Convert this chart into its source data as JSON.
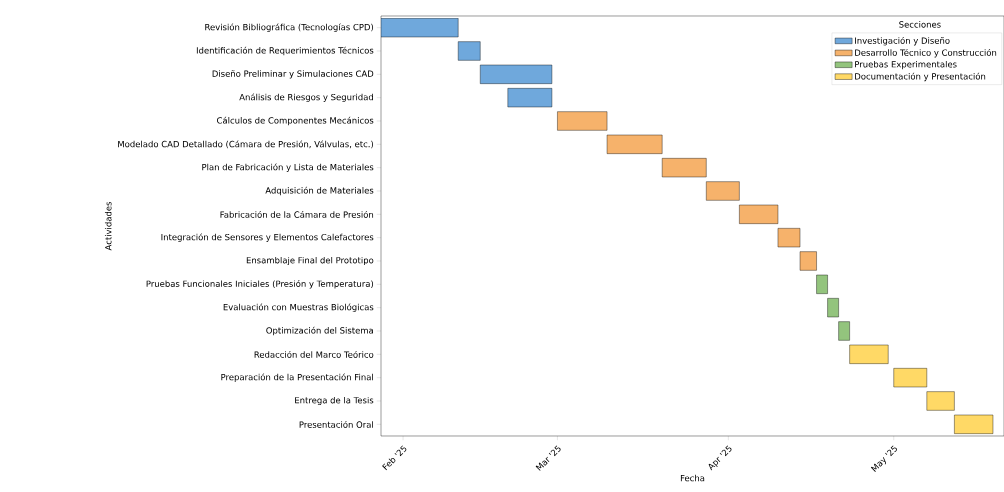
{
  "chart_data": {
    "type": "bar",
    "orientation": "horizontal",
    "xlabel": "Fecha",
    "ylabel": "Actividades",
    "legend_title": "Secciones",
    "legend": "top right",
    "grid": false,
    "categories": [
      "Revisión Bibliográfica (Tecnologías CPD)",
      "Identificación de Requerimientos Técnicos",
      "Diseño Preliminar y Simulaciones CAD",
      "Análisis de Riesgos y Seguridad",
      "Cálculos de Componentes Mecánicos",
      "Modelado CAD Detallado (Cámara de Presión, Válvulas, etc.)",
      "Plan de Fabricación y Lista de Materiales",
      "Adquisición de Materiales",
      "Fabricación de la Cámara de Presión",
      "Integración de Sensores y Elementos Calefactores",
      "Ensamblaje Final del Prototipo",
      "Pruebas Funcionales Iniciales (Presión y Temperatura)",
      "Evaluación con Muestras Biológicas",
      "Optimización del Sistema",
      "Redacción del Marco Teórico",
      "Preparación de la Presentación Final",
      "Entrega de la Tesis",
      "Presentación Oral"
    ],
    "series": [
      {
        "name": "Investigación y Diseño",
        "color": "#6fa8dc",
        "values": [
          14,
          4,
          13,
          8,
          null,
          null,
          null,
          null,
          null,
          null,
          null,
          null,
          null,
          null,
          null,
          null,
          null,
          null
        ],
        "base": [
          20116,
          20130,
          20134,
          20139,
          null,
          null,
          null,
          null,
          null,
          null,
          null,
          null,
          null,
          null,
          null,
          null,
          null,
          null
        ]
      },
      {
        "name": "Desarrollo Técnico y Construcción",
        "color": "#f6b26b",
        "values": [
          null,
          null,
          null,
          null,
          9,
          10,
          8,
          6,
          7,
          4,
          3,
          null,
          null,
          null,
          null,
          null,
          null,
          null
        ],
        "base": [
          null,
          null,
          null,
          null,
          20148,
          20157,
          20167,
          20175,
          20181,
          20188,
          20192,
          null,
          null,
          null,
          null,
          null,
          null,
          null
        ]
      },
      {
        "name": "Pruebas Experimentales",
        "color": "#93c47d",
        "values": [
          null,
          null,
          null,
          null,
          null,
          null,
          null,
          null,
          null,
          null,
          null,
          2,
          2,
          2,
          null,
          null,
          null,
          null
        ],
        "base": [
          null,
          null,
          null,
          null,
          null,
          null,
          null,
          null,
          null,
          null,
          null,
          20195,
          20197,
          20199,
          null,
          null,
          null,
          null
        ]
      },
      {
        "name": "Documentación y Presentación",
        "color": "#ffd966",
        "values": [
          null,
          null,
          null,
          null,
          null,
          null,
          null,
          null,
          null,
          null,
          null,
          null,
          null,
          null,
          7,
          6,
          5,
          7
        ],
        "base": [
          null,
          null,
          null,
          null,
          null,
          null,
          null,
          null,
          null,
          null,
          null,
          null,
          null,
          null,
          20201,
          20209,
          20215,
          20220
        ]
      }
    ],
    "xlim": [
      "2025-01-28",
      "2025-05-21"
    ],
    "xticks": [
      {
        "value": "2025-02-01",
        "label": "Feb '25"
      },
      {
        "value": "2025-03-01",
        "label": "Mar '25"
      },
      {
        "value": "2025-04-01",
        "label": "Apr '25"
      },
      {
        "value": "2025-05-01",
        "label": "May '25"
      }
    ]
  }
}
